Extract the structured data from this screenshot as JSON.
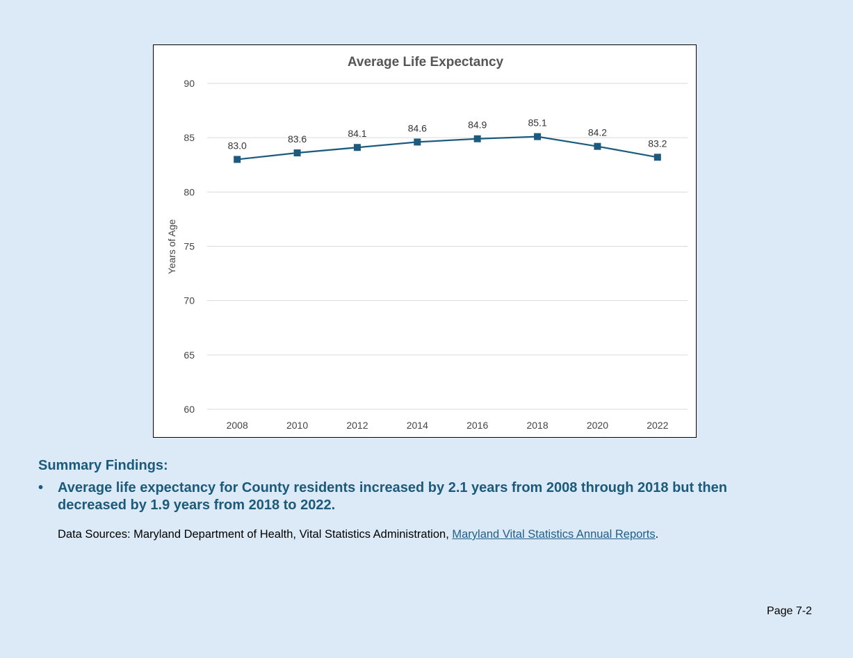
{
  "chart_data": {
    "type": "line",
    "title": "Average Life Expectancy",
    "xlabel": "",
    "ylabel": "Years of Age",
    "categories": [
      "2008",
      "2010",
      "2012",
      "2014",
      "2016",
      "2018",
      "2020",
      "2022"
    ],
    "values": [
      83.0,
      83.6,
      84.1,
      84.6,
      84.9,
      85.1,
      84.2,
      83.2
    ],
    "data_labels": [
      "83.0",
      "83.6",
      "84.1",
      "84.6",
      "84.9",
      "85.1",
      "84.2",
      "83.2"
    ],
    "ylim": [
      60,
      90
    ],
    "yticks": [
      "60",
      "65",
      "70",
      "75",
      "80",
      "85",
      "90"
    ],
    "grid": true,
    "legend": "none",
    "marker": "square",
    "line_color": "#1c5a7e"
  },
  "summary": {
    "heading": "Summary Findings:",
    "bullet_symbol": "•",
    "bullets": [
      "Average life expectancy for County residents increased by 2.1 years from 2008 through 2018 but then decreased by 1.9 years from 2018 to 2022."
    ]
  },
  "sources": {
    "prefix": "Data Sources: Maryland Department of Health, Vital Statistics Administration, ",
    "link_text": "Maryland Vital Statistics Annual Reports",
    "suffix": "."
  },
  "footer": {
    "page_number": "Page 7-2"
  },
  "colors": {
    "page_background": "#dce9f6",
    "heading_text": "#1b5a7a",
    "link": "#1f5f86"
  }
}
